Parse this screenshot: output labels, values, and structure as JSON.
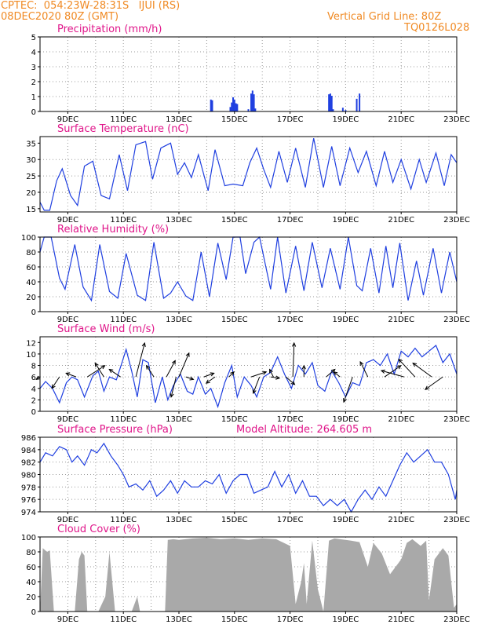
{
  "header": {
    "line1_left": "CPTEC:  054:23W-28:31S   IJUI (RS)",
    "line2_left": "08DEC2020 80Z (GMT)",
    "line1_right": "Vertical Grid Line: 80Z",
    "line2_right": "TQ0126L028"
  },
  "colors": {
    "header": "#f08a24",
    "title": "#e0168a",
    "line": "#1f3fe0",
    "cloud": "#a9a9a9",
    "arrow": "#000000"
  },
  "x_axis": {
    "start_day": 8.0,
    "end_day": 23.0,
    "tick_days": [
      9,
      11,
      13,
      15,
      17,
      19,
      21,
      23
    ],
    "tick_labels": [
      "9DEC",
      "11DEC",
      "13DEC",
      "15DEC",
      "17DEC",
      "19DEC",
      "21DEC",
      "23DEC"
    ],
    "grid_days": [
      9,
      10,
      11,
      12,
      13,
      14,
      15,
      16,
      17,
      18,
      19,
      20,
      21,
      22
    ]
  },
  "chart_data": [
    {
      "type": "bar",
      "title": "Precipitation (mm/h)",
      "ylim": [
        0,
        5
      ],
      "yticks": [
        0,
        1,
        2,
        3,
        4,
        5
      ],
      "x": [
        14.15,
        14.2,
        14.85,
        14.9,
        14.95,
        15.0,
        15.05,
        15.1,
        15.5,
        15.6,
        15.65,
        15.7,
        15.75,
        18.4,
        18.45,
        18.5,
        18.55,
        18.9,
        19.0,
        19.4,
        19.5
      ],
      "values": [
        0.8,
        0.75,
        0.3,
        0.6,
        0.95,
        0.8,
        0.55,
        0.5,
        0.15,
        1.2,
        1.4,
        1.15,
        0.2,
        1.15,
        1.2,
        1.05,
        0.15,
        0.25,
        0.1,
        0.85,
        1.2
      ]
    },
    {
      "type": "line",
      "title": "Surface Temperature (nC)",
      "ylim": [
        14,
        37
      ],
      "yticks": [
        15,
        20,
        25,
        30,
        35
      ],
      "x": [
        8.0,
        8.15,
        8.35,
        8.6,
        8.8,
        9.1,
        9.35,
        9.6,
        9.9,
        10.2,
        10.5,
        10.85,
        11.15,
        11.45,
        11.8,
        12.05,
        12.35,
        12.7,
        12.95,
        13.2,
        13.45,
        13.7,
        14.05,
        14.3,
        14.65,
        14.95,
        15.3,
        15.55,
        15.8,
        16.05,
        16.3,
        16.6,
        16.9,
        17.2,
        17.55,
        17.85,
        18.2,
        18.5,
        18.8,
        19.15,
        19.45,
        19.75,
        20.1,
        20.4,
        20.7,
        21.0,
        21.35,
        21.65,
        21.9,
        22.25,
        22.55,
        22.8,
        23.0
      ],
      "values": [
        17,
        14.5,
        14.5,
        23.5,
        27.2,
        19,
        16,
        28,
        29.5,
        19,
        18,
        31.5,
        20.5,
        34.5,
        35.5,
        24,
        33.5,
        35,
        25.5,
        29,
        24.5,
        31.5,
        20.5,
        33,
        22,
        22.5,
        22,
        29,
        33.5,
        27,
        21.5,
        32.5,
        23,
        33.5,
        21.5,
        36.5,
        21.5,
        34,
        22,
        33.5,
        26,
        32.5,
        22,
        32.5,
        23,
        30,
        21,
        30,
        23,
        32,
        22,
        31.5,
        29
      ]
    },
    {
      "type": "line",
      "title": "Relative Humidity (%)",
      "ylim": [
        0,
        100
      ],
      "yticks": [
        0,
        20,
        40,
        60,
        80,
        100
      ],
      "x": [
        8.0,
        8.15,
        8.4,
        8.7,
        8.9,
        9.25,
        9.55,
        9.85,
        10.15,
        10.5,
        10.8,
        11.1,
        11.5,
        11.8,
        12.1,
        12.45,
        12.7,
        12.95,
        13.25,
        13.5,
        13.8,
        14.1,
        14.4,
        14.7,
        14.95,
        15.2,
        15.4,
        15.7,
        15.9,
        16.3,
        16.55,
        16.85,
        17.2,
        17.5,
        17.8,
        18.15,
        18.45,
        18.8,
        19.1,
        19.4,
        19.6,
        19.9,
        20.2,
        20.45,
        20.7,
        20.95,
        21.25,
        21.55,
        21.8,
        22.15,
        22.45,
        22.75,
        23.0
      ],
      "values": [
        80,
        100,
        100,
        45,
        30,
        90,
        33,
        15,
        90,
        27,
        18,
        78,
        22,
        15,
        93,
        18,
        25,
        40,
        21,
        15,
        80,
        20,
        92,
        43,
        100,
        100,
        51,
        93,
        100,
        30,
        100,
        25,
        88,
        28,
        93,
        32,
        85,
        30,
        100,
        35,
        28,
        85,
        25,
        88,
        32,
        92,
        15,
        68,
        22,
        85,
        25,
        80,
        40
      ]
    },
    {
      "type": "line",
      "title": "Surface Wind (m/s)",
      "ylim": [
        0,
        13
      ],
      "yticks": [
        0,
        2,
        4,
        6,
        8,
        10,
        12
      ],
      "x": [
        8.0,
        8.2,
        8.45,
        8.7,
        8.95,
        9.15,
        9.35,
        9.6,
        9.9,
        10.1,
        10.3,
        10.5,
        10.75,
        10.95,
        11.1,
        11.3,
        11.5,
        11.7,
        11.9,
        12.15,
        12.4,
        12.6,
        12.8,
        13.05,
        13.3,
        13.5,
        13.7,
        13.95,
        14.15,
        14.4,
        14.65,
        14.9,
        15.1,
        15.35,
        15.6,
        15.8,
        16.05,
        16.3,
        16.55,
        16.8,
        17.05,
        17.3,
        17.55,
        17.8,
        18.0,
        18.25,
        18.5,
        18.75,
        19.0,
        19.25,
        19.5,
        19.75,
        20.0,
        20.25,
        20.5,
        20.75,
        21.0,
        21.25,
        21.5,
        21.75,
        22.0,
        22.25,
        22.5,
        22.75,
        23.0
      ],
      "values": [
        4,
        5.2,
        4,
        1.5,
        5,
        6,
        5.5,
        2.5,
        6.2,
        7,
        3.5,
        6,
        5.5,
        8.5,
        10.8,
        7,
        2.5,
        9,
        8.5,
        1.5,
        6,
        2,
        4.5,
        6.5,
        3.5,
        3,
        6,
        3,
        4,
        0.8,
        5,
        8,
        2.5,
        6,
        4.5,
        2.5,
        6,
        6.8,
        9.5,
        6.5,
        4,
        8,
        6.5,
        8.5,
        4.5,
        3.5,
        7,
        5,
        2.5,
        5,
        4.5,
        8.5,
        9,
        8,
        10,
        6.5,
        10.5,
        9.5,
        11,
        9.5,
        10.5,
        11.5,
        8.5,
        10,
        6.5
      ],
      "wind_vectors": [
        {
          "x": 8.0,
          "u": -0.3,
          "v": -0.2
        },
        {
          "x": 8.7,
          "u": -0.6,
          "v": -0.9
        },
        {
          "x": 9.3,
          "u": -0.8,
          "v": 0.3
        },
        {
          "x": 9.7,
          "u": 1.4,
          "v": 0.9
        },
        {
          "x": 10.3,
          "u": -0.7,
          "v": 1.1
        },
        {
          "x": 10.9,
          "u": -0.9,
          "v": 0.6
        },
        {
          "x": 11.45,
          "u": 0.7,
          "v": 2.7
        },
        {
          "x": 12.1,
          "u": -0.6,
          "v": 0.9
        },
        {
          "x": 12.55,
          "u": 0.7,
          "v": 1.3
        },
        {
          "x": 12.9,
          "u": -0.4,
          "v": -1.6
        },
        {
          "x": 13.0,
          "u": 0.8,
          "v": 1.9
        },
        {
          "x": 13.25,
          "u": 0.6,
          "v": -0.2
        },
        {
          "x": 13.9,
          "u": 0.8,
          "v": 0.3
        },
        {
          "x": 14.3,
          "u": -0.7,
          "v": -0.5
        },
        {
          "x": 14.8,
          "u": 0.4,
          "v": 0.4
        },
        {
          "x": 15.6,
          "u": 1.2,
          "v": 0.4
        },
        {
          "x": 15.9,
          "u": -0.5,
          "v": -1.3
        },
        {
          "x": 16.3,
          "u": 0.7,
          "v": -0.1
        },
        {
          "x": 16.4,
          "u": -0.3,
          "v": 0.6
        },
        {
          "x": 16.85,
          "u": 0.7,
          "v": -0.6
        },
        {
          "x": 17.5,
          "u": 0,
          "v": 0.9
        },
        {
          "x": 17.1,
          "u": 0.1,
          "v": 2.7
        },
        {
          "x": 18.3,
          "u": 0.7,
          "v": 0.6
        },
        {
          "x": 18.8,
          "u": -0.5,
          "v": 0.4
        },
        {
          "x": 19.25,
          "u": -0.7,
          "v": -2.0
        },
        {
          "x": 19.8,
          "u": -0.6,
          "v": 1.2
        },
        {
          "x": 20.4,
          "u": 1.3,
          "v": 0.9
        },
        {
          "x": 21.1,
          "u": -1.8,
          "v": 0.5
        },
        {
          "x": 21.5,
          "u": -1.3,
          "v": 1.4
        },
        {
          "x": 22.1,
          "u": -1.5,
          "v": 1.1
        },
        {
          "x": 22.5,
          "u": -1.4,
          "v": -1.0
        }
      ]
    },
    {
      "type": "line",
      "title": "Surface Pressure (hPa)",
      "annotation": "Model Altitude: 264.605 m",
      "ylim": [
        974,
        986
      ],
      "yticks": [
        974,
        976,
        978,
        980,
        982,
        984,
        986
      ],
      "x": [
        8.0,
        8.2,
        8.45,
        8.7,
        8.95,
        9.15,
        9.35,
        9.6,
        9.85,
        10.05,
        10.3,
        10.55,
        10.8,
        11.0,
        11.2,
        11.45,
        11.7,
        11.95,
        12.2,
        12.45,
        12.7,
        12.95,
        13.2,
        13.45,
        13.7,
        13.95,
        14.2,
        14.45,
        14.7,
        14.95,
        15.2,
        15.45,
        15.7,
        15.95,
        16.2,
        16.45,
        16.7,
        16.95,
        17.2,
        17.45,
        17.7,
        17.95,
        18.2,
        18.45,
        18.7,
        18.95,
        19.2,
        19.45,
        19.7,
        19.95,
        20.2,
        20.45,
        20.7,
        20.95,
        21.2,
        21.45,
        21.7,
        21.95,
        22.2,
        22.45,
        22.7,
        22.95,
        23.0
      ],
      "values": [
        982,
        983.5,
        983,
        984.5,
        984,
        982,
        983,
        981.5,
        984,
        983.5,
        985,
        983,
        981.5,
        980,
        978,
        978.5,
        977.5,
        979,
        976.5,
        977.5,
        979,
        977,
        979,
        978,
        978,
        979,
        978.5,
        980,
        977,
        979,
        980,
        980,
        977,
        977.5,
        978,
        980.5,
        978,
        980,
        977,
        979,
        976.5,
        976.5,
        975,
        976,
        975,
        976,
        974,
        976,
        977.5,
        976,
        978,
        976.5,
        979,
        981.5,
        983.5,
        982,
        983,
        984,
        982,
        982,
        980,
        976,
        977.5
      ]
    },
    {
      "type": "area",
      "title": "Cloud Cover (%)",
      "ylim": [
        0,
        100
      ],
      "yticks": [
        0,
        20,
        40,
        60,
        80,
        100
      ],
      "x": [
        8.0,
        8.1,
        8.25,
        8.35,
        8.5,
        8.6,
        8.75,
        9.0,
        9.25,
        9.4,
        9.5,
        9.6,
        9.7,
        9.8,
        9.9,
        10.0,
        10.1,
        10.35,
        10.5,
        10.7,
        11.0,
        11.3,
        11.5,
        11.6,
        12.0,
        12.2,
        12.5,
        12.6,
        12.8,
        13.0,
        13.5,
        14.0,
        14.5,
        15.0,
        15.5,
        16.0,
        16.5,
        17.0,
        17.2,
        17.4,
        17.5,
        17.6,
        17.8,
        18.0,
        18.2,
        18.4,
        18.6,
        18.8,
        19.0,
        19.2,
        19.5,
        19.8,
        20.0,
        20.3,
        20.6,
        21.0,
        21.2,
        21.4,
        21.7,
        21.9,
        22.0,
        22.2,
        22.5,
        22.7,
        22.9,
        23.0
      ],
      "values": [
        0,
        85,
        80,
        82,
        0,
        0,
        0,
        0,
        0,
        70,
        80,
        75,
        0,
        0,
        0,
        0,
        0,
        20,
        80,
        0,
        0,
        0,
        20,
        0,
        0,
        0,
        0,
        96,
        97,
        96,
        98,
        99,
        97,
        98,
        96,
        98,
        97,
        88,
        10,
        40,
        65,
        10,
        95,
        30,
        0,
        95,
        98,
        97,
        96,
        95,
        93,
        60,
        92,
        78,
        50,
        70,
        92,
        97,
        88,
        95,
        15,
        70,
        85,
        75,
        5,
        10
      ]
    }
  ]
}
